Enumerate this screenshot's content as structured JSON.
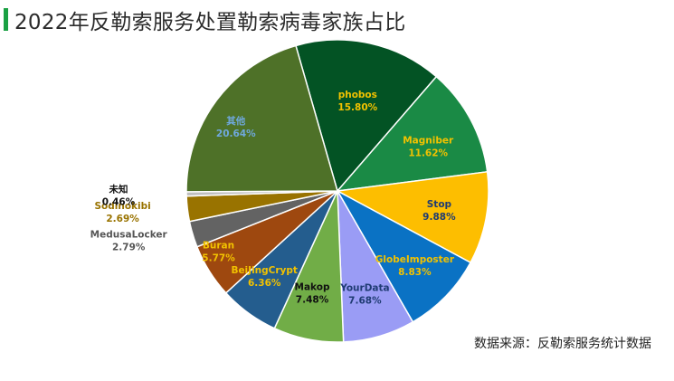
{
  "header": {
    "title": "2022年反勒索服务处置勒索病毒家族占比"
  },
  "footer": {
    "source": "数据来源：反勒索服务统计数据"
  },
  "chart_data": {
    "type": "pie",
    "title": "2022年反勒索服务处置勒索病毒家族占比",
    "legend": "none",
    "slices": [
      {
        "name": "phobos",
        "value": 15.8,
        "label": "15.80%",
        "color": "#035324",
        "label_color": "#f2c200"
      },
      {
        "name": "Magniber",
        "value": 11.62,
        "label": "11.62%",
        "color": "#1a8a45",
        "label_color": "#f2c200"
      },
      {
        "name": "Stop",
        "value": 9.88,
        "label": "9.88%",
        "color": "#fdbe00",
        "label_color": "#1f3b73"
      },
      {
        "name": "GlobeImposter",
        "value": 8.83,
        "label": "8.83%",
        "color": "#0a72c4",
        "label_color": "#f2c200"
      },
      {
        "name": "YourData",
        "value": 7.68,
        "label": "7.68%",
        "color": "#9a9cf5",
        "label_color": "#1f3b73"
      },
      {
        "name": "Makop",
        "value": 7.48,
        "label": "7.48%",
        "color": "#71ad47",
        "label_color": "#111111"
      },
      {
        "name": "BeiJingCrypt",
        "value": 6.36,
        "label": "6.36%",
        "color": "#245d8e",
        "label_color": "#f2c200"
      },
      {
        "name": "Buran",
        "value": 5.77,
        "label": "5.77%",
        "color": "#9e480f",
        "label_color": "#f2c200"
      },
      {
        "name": "MedusaLocker",
        "value": 2.79,
        "label": "2.79%",
        "color": "#636363",
        "label_color": "#555555"
      },
      {
        "name": "Sodinokibi",
        "value": 2.69,
        "label": "2.69%",
        "color": "#997300",
        "label_color": "#997300"
      },
      {
        "name": "未知",
        "value": 0.46,
        "label": "0.46%",
        "color": "#bfbfbf",
        "label_color": "#111111"
      },
      {
        "name": "其他",
        "value": 20.64,
        "label": "20.64%",
        "color": "#4e7128",
        "label_color": "#6fa8dc"
      }
    ]
  }
}
